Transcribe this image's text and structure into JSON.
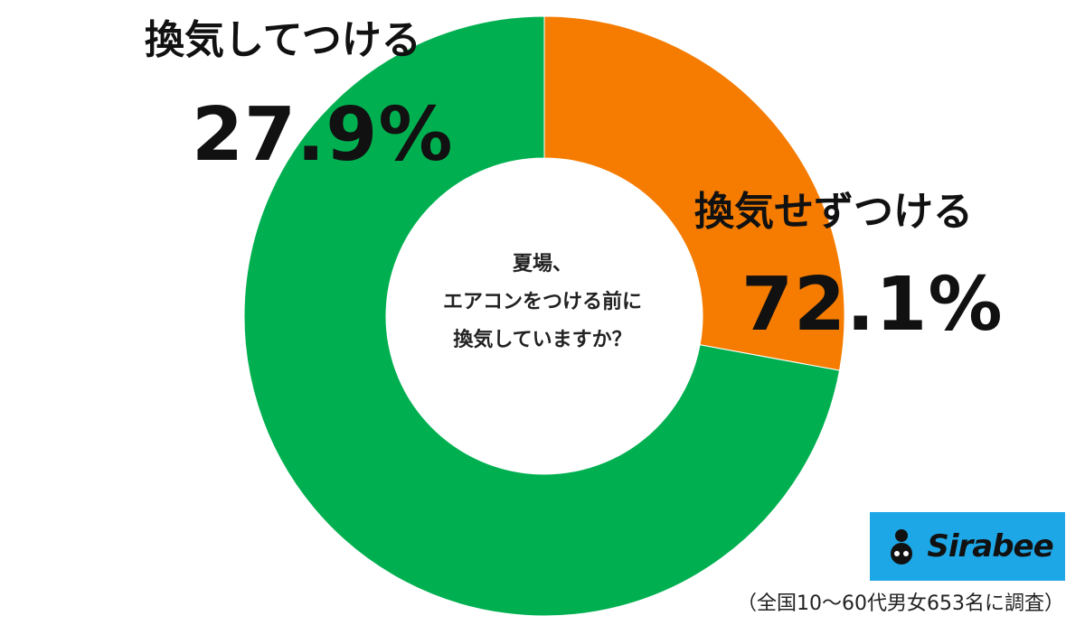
{
  "chart_data": {
    "type": "pie",
    "variant": "donut",
    "title": "夏場、エアコンをつける前に換気していますか？",
    "title_lines": [
      "夏場、",
      "エアコンをつける前に",
      "換気していますか？"
    ],
    "categories": [
      "換気してつける",
      "換気せずつける"
    ],
    "values": [
      27.9,
      72.1
    ],
    "value_labels": [
      "27.9%",
      "72.1%"
    ],
    "colors": [
      "#f57c00",
      "#00b050"
    ],
    "start": "top, clockwise",
    "legend": "none"
  },
  "branding": {
    "logo_text": "Sirabee",
    "logo_color": "#1ea7e6"
  },
  "footnote": "（全国10〜60代男女653名に調査）"
}
